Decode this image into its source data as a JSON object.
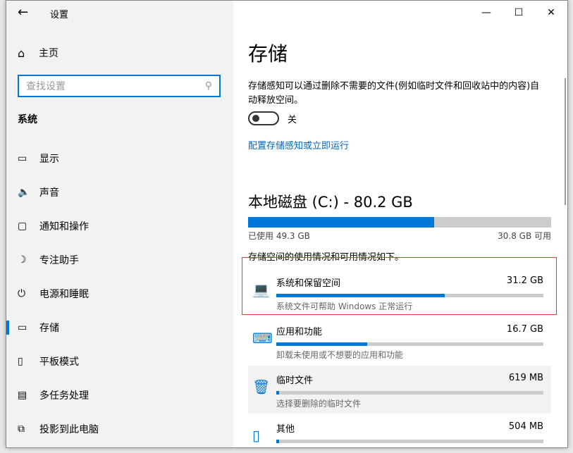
{
  "window": {
    "title": "设置",
    "minimize": "—",
    "maximize": "☐",
    "close": "✕"
  },
  "sidebar": {
    "home": "主页",
    "search_placeholder": "查找设置",
    "section": "系统",
    "items": [
      {
        "label": "显示",
        "icon": "monitor-icon",
        "glyph": "▭"
      },
      {
        "label": "声音",
        "icon": "speaker-icon",
        "glyph": "🔈"
      },
      {
        "label": "通知和操作",
        "icon": "notification-icon",
        "glyph": "▢"
      },
      {
        "label": "专注助手",
        "icon": "moon-icon",
        "glyph": "☽"
      },
      {
        "label": "电源和睡眠",
        "icon": "power-icon",
        "glyph": "⏻"
      },
      {
        "label": "存储",
        "icon": "storage-icon",
        "glyph": "▭",
        "active": true
      },
      {
        "label": "平板模式",
        "icon": "tablet-icon",
        "glyph": "▯"
      },
      {
        "label": "多任务处理",
        "icon": "multitask-icon",
        "glyph": "▤"
      },
      {
        "label": "投影到此电脑",
        "icon": "project-icon",
        "glyph": "⧉"
      }
    ]
  },
  "main": {
    "title": "存储",
    "description": "存储感知可以通过删除不需要的文件(例如临时文件和回收站中的内容)自动释放空间。",
    "toggle_label": "关",
    "toggle_on": false,
    "config_link": "配置存储感知或立即运行",
    "disk": {
      "title": "本地磁盘 (C:) - 80.2 GB",
      "used": "已使用 49.3 GB",
      "free": "30.8 GB 可用",
      "used_percent": 61.5
    },
    "usage_label": "存储空间的使用情况和可用情况如下。",
    "categories": [
      {
        "name": "系统和保留空间",
        "size": "31.2 GB",
        "sub": "系统文件可帮助 Windows 正常运行",
        "percent": 63,
        "icon": "laptop-icon",
        "glyph": "💻"
      },
      {
        "name": "应用和功能",
        "size": "16.7 GB",
        "sub": "卸载未使用或不想要的应用和功能",
        "percent": 34,
        "icon": "keyboard-monitor-icon",
        "glyph": "⌨"
      },
      {
        "name": "临时文件",
        "size": "619 MB",
        "sub": "选择要删除的临时文件",
        "percent": 1,
        "icon": "trash-icon",
        "glyph": "🗑"
      },
      {
        "name": "其他",
        "size": "504 MB",
        "sub": "",
        "percent": 1,
        "icon": "folder-icon",
        "glyph": "▯"
      }
    ]
  },
  "colors": {
    "accent": "#0078d7",
    "highlight_border": "#e33333"
  }
}
